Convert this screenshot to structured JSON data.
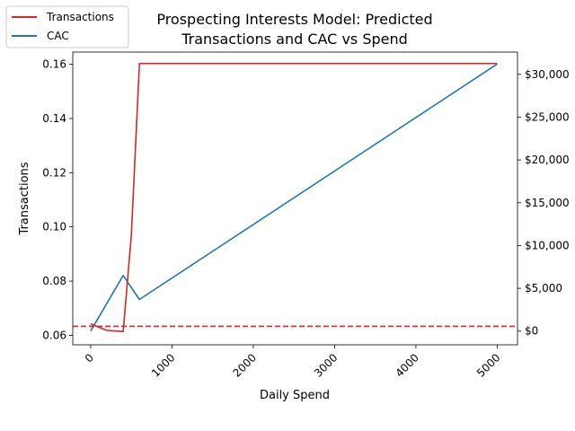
{
  "chart_data": {
    "type": "line",
    "title_lines": [
      "Prospecting Interests Model: Predicted",
      "Transactions and CAC vs Spend"
    ],
    "xlabel": "Daily Spend",
    "ylabel": "Transactions",
    "xlim": [
      -220,
      5250
    ],
    "ylim_left": [
      0.0565,
      0.1645
    ],
    "ylim_right": [
      -1600,
      32600
    ],
    "x_ticks": [
      0,
      1000,
      2000,
      3000,
      4000,
      5000
    ],
    "x_tick_labels": [
      "0",
      "1000",
      "2000",
      "3000",
      "4000",
      "5000"
    ],
    "y_left_ticks": [
      0.06,
      0.08,
      0.1,
      0.12,
      0.14,
      0.16
    ],
    "y_left_tick_labels": [
      "0.06",
      "0.08",
      "0.10",
      "0.12",
      "0.14",
      "0.16"
    ],
    "y_right_ticks": [
      0,
      5000,
      10000,
      15000,
      20000,
      25000,
      30000
    ],
    "y_right_tick_labels": [
      "$0",
      "$5,000",
      "$10,000",
      "$15,000",
      "$20,000",
      "$25,000",
      "$30,000"
    ],
    "legend_position": "top-left",
    "series": [
      {
        "name": "Transactions",
        "axis": "left",
        "color": "#d62728",
        "x": [
          0,
          200,
          400,
          500,
          600,
          5000
        ],
        "y": [
          0.0642,
          0.0618,
          0.0614,
          0.097,
          0.1603,
          0.1603
        ]
      },
      {
        "name": "CAC",
        "axis": "right",
        "color": "#1f77b4",
        "x": [
          0,
          400,
          600,
          5000
        ],
        "y": [
          0,
          6500,
          3700,
          31200
        ]
      }
    ],
    "reference_line": {
      "axis": "left",
      "y": 0.0633,
      "color": "#d62728",
      "style": "dashed"
    }
  }
}
